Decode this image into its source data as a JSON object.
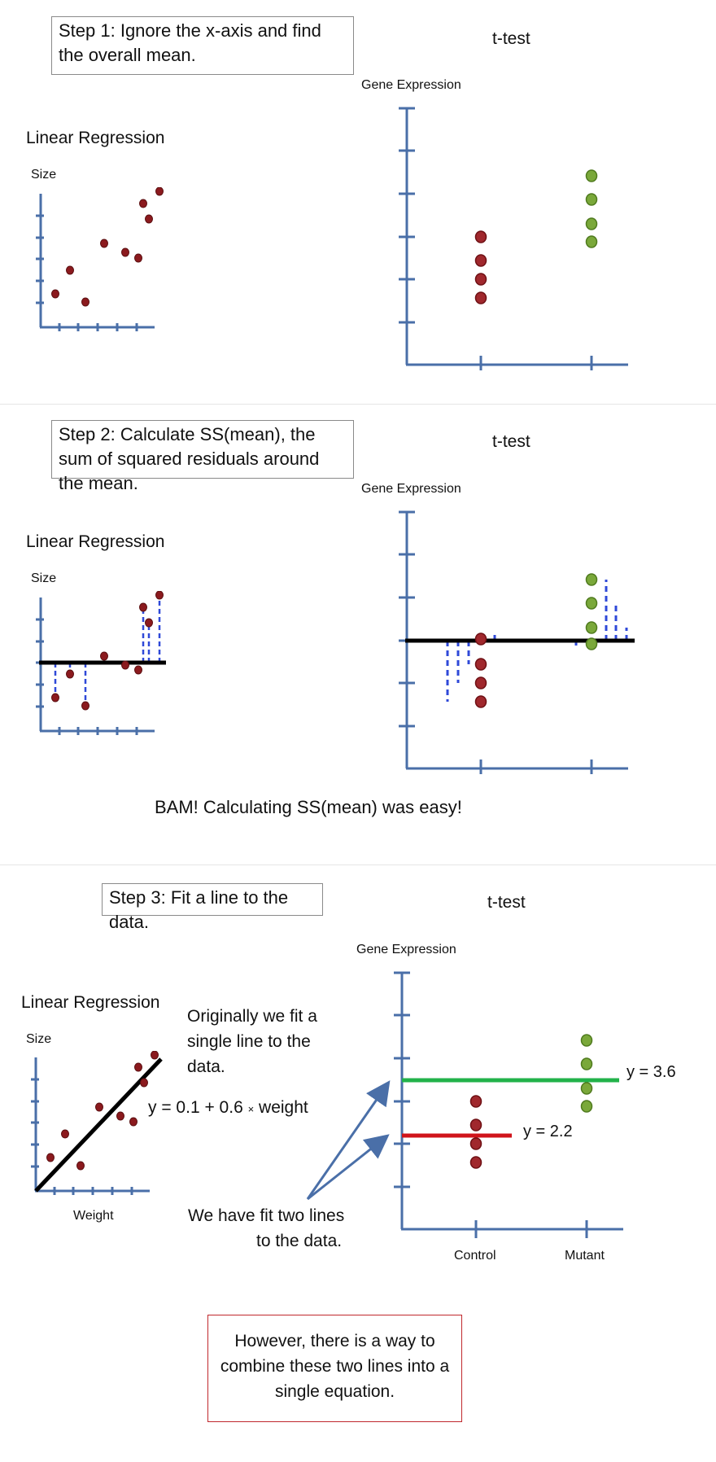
{
  "panel1": {
    "step": "Step 1: Ignore the x-axis and find the overall mean.",
    "lr_title": "Linear Regression",
    "lr_ylabel": "Size",
    "tt_title": "t-test",
    "tt_ylabel": "Gene Expression"
  },
  "panel2": {
    "step": "Step 2: Calculate SS(mean), the sum of squared residuals around the mean.",
    "lr_title": "Linear Regression",
    "lr_ylabel": "Size",
    "tt_title": "t-test",
    "tt_ylabel": "Gene Expression",
    "bam": "BAM! Calculating SS(mean) was easy!"
  },
  "panel3": {
    "step": "Step 3: Fit a line to the data.",
    "lr_title": "Linear Regression",
    "lr_ylabel": "Size",
    "lr_xlabel": "Weight",
    "tt_title": "t-test",
    "tt_ylabel": "Gene Expression",
    "note_single": "Originally we fit a single line to the data.",
    "equation": "y = 0.1 + 0.6",
    "equation_times": "×",
    "equation_rest": "weight",
    "note_two_line1": "We have fit two lines",
    "note_two_line2": "to the data.",
    "label_mutant_line": "y = 3.6",
    "label_control_line": "y = 2.2",
    "x_control": "Control",
    "x_mutant": "Mutant"
  },
  "footer": {
    "line1": "However, there is a way to",
    "line2": "combine these two lines into a",
    "line3": "single equation."
  },
  "colors": {
    "axis": "#4a6fa8",
    "lr_point": "#8b1a1e",
    "control_point": "#a0282d",
    "mutant_point": "#7aa83a",
    "mean_line": "#000000",
    "residual": "#2f49d8",
    "mutant_fit": "#22b24a",
    "control_fit": "#d0141b",
    "arrow": "#4a6fa8"
  },
  "chart_data": [
    {
      "type": "scatter",
      "name": "linear regression points",
      "x": [
        1,
        2,
        3,
        4,
        5,
        6,
        7,
        8
      ],
      "y": [
        1.0,
        2.1,
        0.8,
        4.1,
        3.5,
        3.2,
        5.3,
        6.4
      ],
      "extra": [
        {
          "x": 7.4,
          "y": 6.2
        },
        {
          "x": 7.8,
          "y": 5.6
        }
      ]
    },
    {
      "type": "scatter",
      "name": "t-test points",
      "categories": [
        "Control",
        "Mutant"
      ],
      "control": [
        1.6,
        2.0,
        2.5,
        3.0
      ],
      "mutant": [
        3.1,
        3.5,
        4.1,
        4.6
      ],
      "fits": {
        "control": 2.2,
        "mutant": 3.6
      }
    }
  ]
}
